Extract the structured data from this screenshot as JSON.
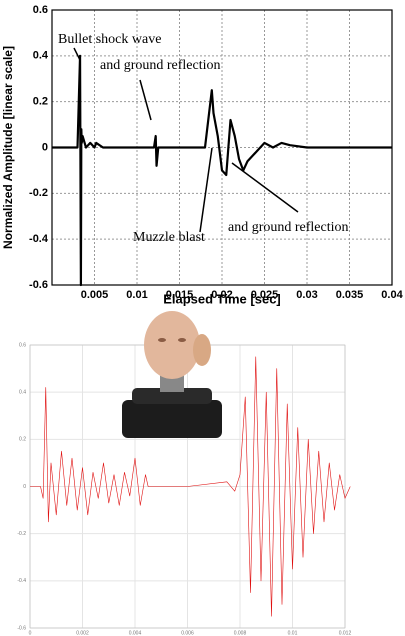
{
  "chart_data": [
    {
      "type": "line",
      "ylabel": "Normalized Amplitude [linear scale]",
      "xlabel": "Elapsed Time [sec]",
      "xlim": [
        0,
        0.04
      ],
      "ylim": [
        -0.6,
        0.6
      ],
      "xticks": [
        0.005,
        0.01,
        0.015,
        0.02,
        0.025,
        0.03,
        0.035,
        0.04
      ],
      "yticks": [
        -0.6,
        -0.4,
        -0.2,
        0,
        0.2,
        0.4,
        0.6
      ],
      "grid": true,
      "annotations": [
        "Bullet shock wave",
        "and ground reflection",
        "Muzzle blast",
        "and ground reflection"
      ],
      "series": [
        {
          "color": "#000000",
          "x": [
            0,
            0.003,
            0.0033,
            0.0034,
            0.00345,
            0.0035,
            0.0036,
            0.004,
            0.0045,
            0.005,
            0.0052,
            0.006,
            0.012,
            0.0122,
            0.0123,
            0.0125,
            0.013,
            0.018,
            0.0188,
            0.019,
            0.0195,
            0.02,
            0.0205,
            0.021,
            0.0215,
            0.022,
            0.0225,
            0.023,
            0.024,
            0.025,
            0.026,
            0.027,
            0.028,
            0.03,
            0.04
          ],
          "values": [
            0,
            0,
            0.4,
            -0.6,
            0.08,
            0.02,
            0.05,
            0,
            0.02,
            0,
            0.02,
            0,
            0,
            0.05,
            -0.08,
            0,
            0,
            0,
            0.25,
            0.15,
            0.05,
            -0.1,
            -0.12,
            0.12,
            0.05,
            -0.05,
            -0.1,
            -0.06,
            -0.02,
            0.02,
            0,
            0.02,
            0.01,
            0,
            0
          ]
        }
      ]
    },
    {
      "type": "line",
      "xlim": [
        0,
        0.012
      ],
      "ylim": [
        -0.6,
        0.6
      ],
      "xticks": [
        0,
        0.002,
        0.004,
        0.006,
        0.008,
        0.01,
        0.012
      ],
      "yticks": [
        -0.6,
        -0.4,
        -0.2,
        0,
        0.2,
        0.4,
        0.6
      ],
      "grid": true,
      "series": [
        {
          "color": "#e01010",
          "x": [
            0,
            0.0004,
            0.0005,
            0.0006,
            0.0007,
            0.0008,
            0.001,
            0.0012,
            0.0014,
            0.0016,
            0.0018,
            0.002,
            0.0022,
            0.0024,
            0.0026,
            0.0028,
            0.003,
            0.0032,
            0.0034,
            0.0036,
            0.0038,
            0.004,
            0.0042,
            0.0044,
            0.0045,
            0.0046,
            0.006,
            0.0075,
            0.0078,
            0.008,
            0.0082,
            0.0084,
            0.0086,
            0.0088,
            0.009,
            0.0092,
            0.0094,
            0.0096,
            0.0098,
            0.01,
            0.0102,
            0.0104,
            0.0106,
            0.0108,
            0.011,
            0.0112,
            0.0114,
            0.0116,
            0.0118,
            0.012,
            0.0122
          ],
          "values": [
            0,
            0,
            -0.05,
            0.42,
            -0.15,
            0.1,
            -0.12,
            0.15,
            -0.08,
            0.12,
            -0.1,
            0.08,
            -0.12,
            0.06,
            -0.05,
            0.1,
            -0.07,
            0.05,
            -0.08,
            0.06,
            -0.04,
            0.12,
            -0.08,
            0.05,
            0,
            0,
            0,
            0.02,
            -0.02,
            0.05,
            0.38,
            -0.45,
            0.55,
            -0.4,
            0.4,
            -0.55,
            0.5,
            -0.5,
            0.35,
            -0.35,
            0.25,
            -0.3,
            0.2,
            -0.2,
            0.15,
            -0.15,
            0.1,
            -0.1,
            0.05,
            -0.05,
            0
          ]
        }
      ]
    }
  ]
}
